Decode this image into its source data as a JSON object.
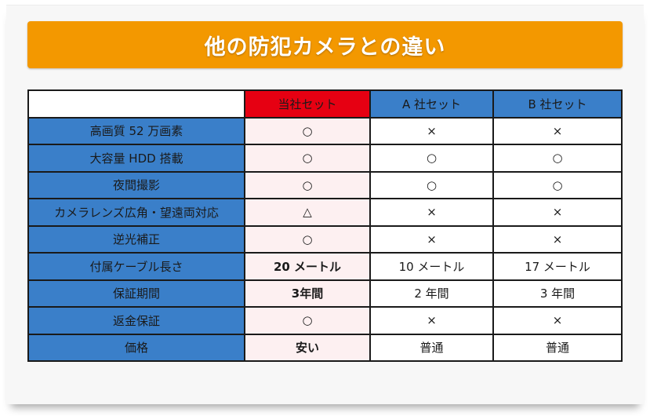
{
  "title": "他の防犯カメラとの違い",
  "table": {
    "headers": [
      "",
      "当社セット",
      "A 社セット",
      "B 社セット"
    ],
    "rows": [
      {
        "label": "高画質 52 万画素",
        "ours": "○",
        "a": "×",
        "b": "×"
      },
      {
        "label": "大容量 HDD 搭載",
        "ours": "○",
        "a": "○",
        "b": "○"
      },
      {
        "label": "夜間撮影",
        "ours": "○",
        "a": "○",
        "b": "○"
      },
      {
        "label": "カメラレンズ広角・望遠両対応",
        "ours": "△",
        "a": "×",
        "b": "×"
      },
      {
        "label": "逆光補正",
        "ours": "○",
        "a": "×",
        "b": "×"
      },
      {
        "label": "付属ケーブル長さ",
        "ours": "20 メートル",
        "a": "10 メートル",
        "b": "17 メートル"
      },
      {
        "label": "保証期間",
        "ours": "3年間",
        "a": "2 年間",
        "b": "3 年間"
      },
      {
        "label": "返金保証",
        "ours": "○",
        "a": "×",
        "b": "×"
      },
      {
        "label": "価格",
        "ours": "安い",
        "a": "普通",
        "b": "普通"
      }
    ]
  },
  "colors": {
    "banner": "#f39800",
    "ours_header": "#e60012",
    "other_header": "#3a7fc9",
    "ours_cell_bg": "#fdf0f1",
    "ours_text": "#e60012"
  }
}
